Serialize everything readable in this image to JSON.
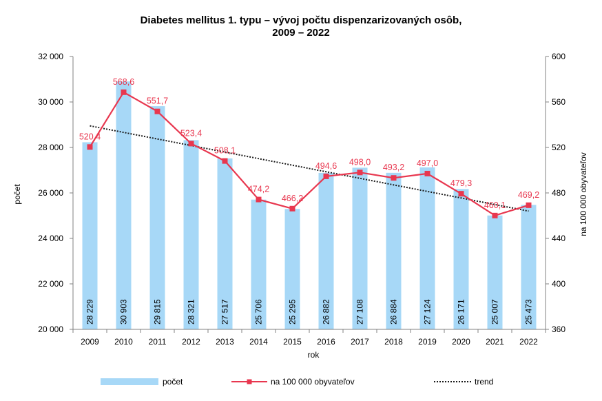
{
  "chart_data": {
    "type": "bar",
    "title_line1": "Diabetes mellitus 1. typu – vývoj počtu dispenzarizovaných osôb,",
    "title_line2": "2009 – 2022",
    "xlabel": "rok",
    "ylabel": "počet",
    "y2label": "na 100 000 obyvateľov",
    "ylim": [
      20000,
      32000
    ],
    "y2lim": [
      360,
      600
    ],
    "y_ticks": [
      "20 000",
      "22 000",
      "24 000",
      "26 000",
      "28 000",
      "30 000",
      "32 000"
    ],
    "y2_ticks": [
      "360",
      "400",
      "440",
      "480",
      "520",
      "560",
      "600"
    ],
    "categories": [
      "2009",
      "2010",
      "2011",
      "2012",
      "2013",
      "2014",
      "2015",
      "2016",
      "2017",
      "2018",
      "2019",
      "2020",
      "2021",
      "2022"
    ],
    "series": [
      {
        "name": "počet",
        "kind": "bar",
        "axis": "left",
        "color": "#a7d8f7",
        "values": [
          28229,
          30903,
          29815,
          28321,
          27517,
          25706,
          25295,
          26882,
          27108,
          26884,
          27124,
          26171,
          25007,
          25473
        ],
        "labels": [
          "28 229",
          "30 903",
          "29 815",
          "28 321",
          "27 517",
          "25 706",
          "25 295",
          "26 882",
          "27 108",
          "26 884",
          "27 124",
          "26 171",
          "25 007",
          "25 473"
        ]
      },
      {
        "name": "na 100 000 obyvateľov",
        "kind": "line",
        "axis": "right",
        "color": "#e8374f",
        "values": [
          520.4,
          568.6,
          551.7,
          523.4,
          508.1,
          474.2,
          466.2,
          494.6,
          498.0,
          493.2,
          497.0,
          479.3,
          460.1,
          469.2
        ],
        "labels": [
          "520,4",
          "568,6",
          "551,7",
          "523,4",
          "508,1",
          "474,2",
          "466,2",
          "494,6",
          "498,0",
          "493,2",
          "497,0",
          "479,3",
          "460,1",
          "469,2"
        ]
      },
      {
        "name": "trend",
        "kind": "trendline",
        "axis": "right",
        "color": "#1a1a1a",
        "style": "dotted",
        "start": 539,
        "end": 464
      }
    ],
    "legend_position": "bottom",
    "grid": false
  }
}
